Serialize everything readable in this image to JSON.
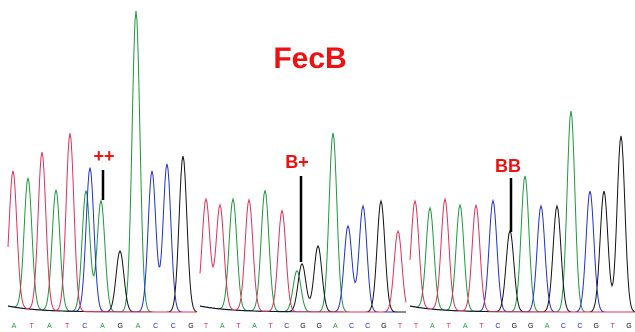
{
  "title": "FecB",
  "panels": [
    {
      "genotype": "++",
      "bases": [
        "A",
        "T",
        "A",
        "T",
        "C",
        "A",
        "G",
        "A",
        "C",
        "C",
        "G"
      ]
    },
    {
      "genotype": "B+",
      "bases": [
        "T",
        "A",
        "T",
        "A",
        "T",
        "C",
        "G",
        "G",
        "A",
        "C",
        "C",
        "G",
        "T"
      ]
    },
    {
      "genotype": "BB",
      "bases": [
        "T",
        "A",
        "T",
        "A",
        "T",
        "C",
        "G",
        "G",
        "A",
        "C",
        "C",
        "G",
        "T",
        "G"
      ]
    }
  ]
}
